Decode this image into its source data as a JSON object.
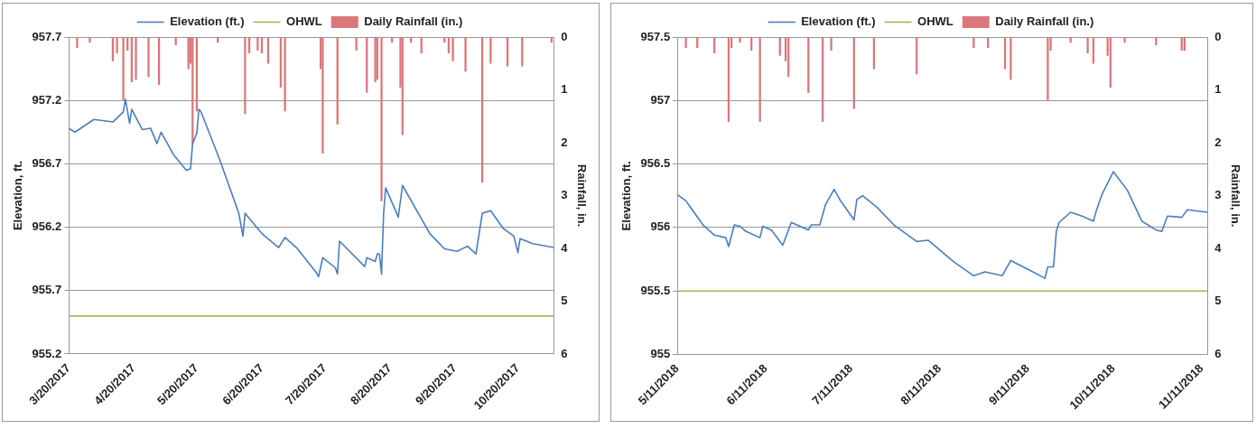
{
  "chart_data": [
    {
      "type": "line",
      "ylabel": "Elevation, ft.",
      "y2label": "Rainfall, in.",
      "legend": "top",
      "grid": "y",
      "marker": "none",
      "xlim": [
        "2017-03-20",
        "2017-11-06"
      ],
      "xticks": [
        {
          "value": "2017-03-20",
          "label": "3/20/2017"
        },
        {
          "value": "2017-04-20",
          "label": "4/20/2017"
        },
        {
          "value": "2017-05-20",
          "label": "5/20/2017"
        },
        {
          "value": "2017-06-20",
          "label": "6/20/2017"
        },
        {
          "value": "2017-07-20",
          "label": "7/20/2017"
        },
        {
          "value": "2017-08-20",
          "label": "8/20/2017"
        },
        {
          "value": "2017-09-20",
          "label": "9/20/2017"
        },
        {
          "value": "2017-10-20",
          "label": "10/20/2017"
        }
      ],
      "ylim": [
        955.2,
        957.7
      ],
      "yticks": [
        955.2,
        955.7,
        956.2,
        956.7,
        957.2,
        957.7
      ],
      "y2lim": [
        6,
        0
      ],
      "y2ticks": [
        0,
        1,
        2,
        3,
        4,
        5,
        6
      ],
      "series": [
        {
          "name": "Daily Rainfall (in.)",
          "type": "bar",
          "axis": "y2",
          "color": "#d9777a",
          "x": [
            "2017-03-24",
            "2017-03-30",
            "2017-04-10",
            "2017-04-12",
            "2017-04-15",
            "2017-04-17",
            "2017-04-19",
            "2017-04-21",
            "2017-04-27",
            "2017-05-02",
            "2017-05-10",
            "2017-05-16",
            "2017-05-17",
            "2017-05-18",
            "2017-05-20",
            "2017-05-30",
            "2017-06-12",
            "2017-06-14",
            "2017-06-18",
            "2017-06-20",
            "2017-06-23",
            "2017-06-29",
            "2017-07-01",
            "2017-07-18",
            "2017-07-19",
            "2017-07-26",
            "2017-08-04",
            "2017-08-09",
            "2017-08-13",
            "2017-08-14",
            "2017-08-16",
            "2017-08-21",
            "2017-08-25",
            "2017-08-26",
            "2017-08-30",
            "2017-09-04",
            "2017-09-15",
            "2017-09-17",
            "2017-09-19",
            "2017-09-25",
            "2017-10-03",
            "2017-10-07",
            "2017-10-15",
            "2017-10-22",
            "2017-11-05"
          ],
          "values": [
            0.2,
            0.1,
            0.45,
            0.3,
            1.2,
            0.25,
            0.85,
            0.8,
            0.75,
            0.9,
            0.15,
            0.6,
            0.5,
            2.0,
            1.4,
            0.1,
            1.45,
            0.3,
            0.25,
            0.3,
            0.5,
            0.95,
            1.4,
            0.6,
            2.2,
            1.65,
            0.25,
            1.05,
            0.85,
            0.8,
            3.1,
            0.1,
            0.95,
            1.85,
            0.1,
            0.3,
            0.1,
            0.3,
            0.45,
            0.65,
            2.75,
            0.5,
            0.55,
            0.55,
            0.1
          ]
        },
        {
          "name": "Elevation (ft.)",
          "color": "#4a7ebb",
          "x": [
            "2017-03-20",
            "2017-03-23",
            "2017-04-01",
            "2017-04-10",
            "2017-04-15",
            "2017-04-16",
            "2017-04-18",
            "2017-04-19",
            "2017-04-24",
            "2017-04-28",
            "2017-05-01",
            "2017-05-03",
            "2017-05-09",
            "2017-05-15",
            "2017-05-17",
            "2017-05-18",
            "2017-05-20",
            "2017-05-21",
            "2017-05-22",
            "2017-05-31",
            "2017-06-09",
            "2017-06-11",
            "2017-06-12",
            "2017-06-13",
            "2017-06-20",
            "2017-06-28",
            "2017-07-01",
            "2017-07-07",
            "2017-07-16",
            "2017-07-17",
            "2017-07-19",
            "2017-07-25",
            "2017-07-26",
            "2017-07-27",
            "2017-08-08",
            "2017-08-09",
            "2017-08-13",
            "2017-08-14",
            "2017-08-15",
            "2017-08-16",
            "2017-08-17",
            "2017-08-18",
            "2017-08-24",
            "2017-08-26",
            "2017-09-08",
            "2017-09-15",
            "2017-09-21",
            "2017-09-26",
            "2017-09-30",
            "2017-10-03",
            "2017-10-07",
            "2017-10-13",
            "2017-10-18",
            "2017-10-20",
            "2017-10-21",
            "2017-10-27",
            "2017-11-06"
          ],
          "values": [
            956.98,
            956.95,
            957.05,
            957.03,
            957.11,
            957.21,
            957.02,
            957.13,
            956.97,
            956.98,
            956.86,
            956.95,
            956.77,
            956.65,
            956.66,
            956.86,
            956.94,
            957.13,
            957.11,
            956.73,
            956.31,
            956.13,
            956.31,
            956.29,
            956.15,
            956.04,
            956.12,
            956.03,
            955.84,
            955.81,
            955.96,
            955.88,
            955.83,
            956.09,
            955.89,
            955.96,
            955.93,
            955.99,
            955.99,
            955.83,
            956.31,
            956.51,
            956.28,
            956.53,
            956.15,
            956.03,
            956.01,
            956.05,
            955.99,
            956.31,
            956.33,
            956.19,
            956.13,
            956.0,
            956.11,
            956.07,
            956.04
          ]
        },
        {
          "name": "OHWL",
          "color": "#9bbb59",
          "x": [
            "2017-03-20",
            "2017-11-06"
          ],
          "values": [
            955.5,
            955.5
          ]
        }
      ]
    },
    {
      "type": "line",
      "ylabel": "Elevation, ft.",
      "y2label": "Rainfall, in.",
      "legend": "top",
      "grid": "y",
      "marker": "none",
      "xlim": [
        "2018-05-11",
        "2018-11-13"
      ],
      "xticks": [
        {
          "value": "2018-05-11",
          "label": "5/11/2018"
        },
        {
          "value": "2018-06-11",
          "label": "6/11/2018"
        },
        {
          "value": "2018-07-11",
          "label": "7/11/2018"
        },
        {
          "value": "2018-08-11",
          "label": "8/11/2018"
        },
        {
          "value": "2018-09-11",
          "label": "9/11/2018"
        },
        {
          "value": "2018-10-11",
          "label": "10/11/2018"
        },
        {
          "value": "2018-11-11",
          "label": "11/11/2018"
        }
      ],
      "ylim": [
        955,
        957.5
      ],
      "yticks": [
        955,
        955.5,
        956,
        956.5,
        957,
        957.5
      ],
      "y2lim": [
        6,
        0
      ],
      "y2ticks": [
        0,
        1,
        2,
        3,
        4,
        5,
        6
      ],
      "series": [
        {
          "name": "Daily Rainfall (in.)",
          "type": "bar",
          "axis": "y2",
          "color": "#d9777a",
          "x": [
            "2018-05-14",
            "2018-05-18",
            "2018-05-24",
            "2018-05-29",
            "2018-05-30",
            "2018-06-02",
            "2018-06-06",
            "2018-06-09",
            "2018-06-16",
            "2018-06-18",
            "2018-06-19",
            "2018-06-26",
            "2018-07-01",
            "2018-07-04",
            "2018-07-12",
            "2018-07-19",
            "2018-08-03",
            "2018-08-23",
            "2018-08-28",
            "2018-09-03",
            "2018-09-05",
            "2018-09-18",
            "2018-09-19",
            "2018-09-26",
            "2018-10-02",
            "2018-10-04",
            "2018-10-09",
            "2018-10-10",
            "2018-10-15",
            "2018-10-26",
            "2018-11-04",
            "2018-11-05"
          ],
          "values": [
            0.2,
            0.2,
            0.3,
            1.6,
            0.2,
            0.1,
            0.25,
            1.6,
            0.35,
            0.45,
            0.75,
            1.05,
            1.6,
            0.25,
            1.35,
            0.6,
            0.7,
            0.2,
            0.2,
            0.6,
            0.8,
            1.2,
            0.25,
            0.1,
            0.3,
            0.5,
            0.35,
            0.95,
            0.1,
            0.15,
            0.25,
            0.25
          ]
        },
        {
          "name": "Elevation (ft.)",
          "color": "#4a7ebb",
          "x": [
            "2018-05-11",
            "2018-05-14",
            "2018-05-20",
            "2018-05-24",
            "2018-05-28",
            "2018-05-29",
            "2018-05-31",
            "2018-06-02",
            "2018-06-04",
            "2018-06-09",
            "2018-06-10",
            "2018-06-13",
            "2018-06-16",
            "2018-06-17",
            "2018-06-20",
            "2018-06-26",
            "2018-06-27",
            "2018-06-30",
            "2018-07-02",
            "2018-07-05",
            "2018-07-07",
            "2018-07-12",
            "2018-07-13",
            "2018-07-15",
            "2018-07-20",
            "2018-07-26",
            "2018-08-03",
            "2018-08-07",
            "2018-08-16",
            "2018-08-23",
            "2018-08-27",
            "2018-09-02",
            "2018-09-05",
            "2018-09-12",
            "2018-09-17",
            "2018-09-18",
            "2018-09-20",
            "2018-09-21",
            "2018-09-22",
            "2018-09-26",
            "2018-09-30",
            "2018-10-04",
            "2018-10-05",
            "2018-10-07",
            "2018-10-11",
            "2018-10-16",
            "2018-10-21",
            "2018-10-26",
            "2018-10-28",
            "2018-10-30",
            "2018-11-04",
            "2018-11-06",
            "2018-11-13"
          ],
          "values": [
            956.26,
            956.21,
            956.02,
            955.94,
            955.92,
            955.85,
            956.02,
            956.01,
            955.97,
            955.92,
            956.01,
            955.98,
            955.89,
            955.86,
            956.04,
            955.98,
            956.02,
            956.02,
            956.18,
            956.3,
            956.22,
            956.06,
            956.22,
            956.25,
            956.16,
            956.02,
            955.89,
            955.9,
            955.73,
            955.62,
            955.65,
            955.62,
            955.74,
            955.66,
            955.6,
            955.69,
            955.69,
            955.97,
            956.04,
            956.12,
            956.09,
            956.05,
            956.13,
            956.26,
            956.44,
            956.29,
            956.05,
            955.98,
            955.97,
            956.09,
            956.08,
            956.14,
            956.12
          ]
        },
        {
          "name": "OHWL",
          "color": "#9bbb59",
          "x": [
            "2018-05-11",
            "2018-11-13"
          ],
          "values": [
            955.5,
            955.5
          ]
        }
      ]
    }
  ]
}
